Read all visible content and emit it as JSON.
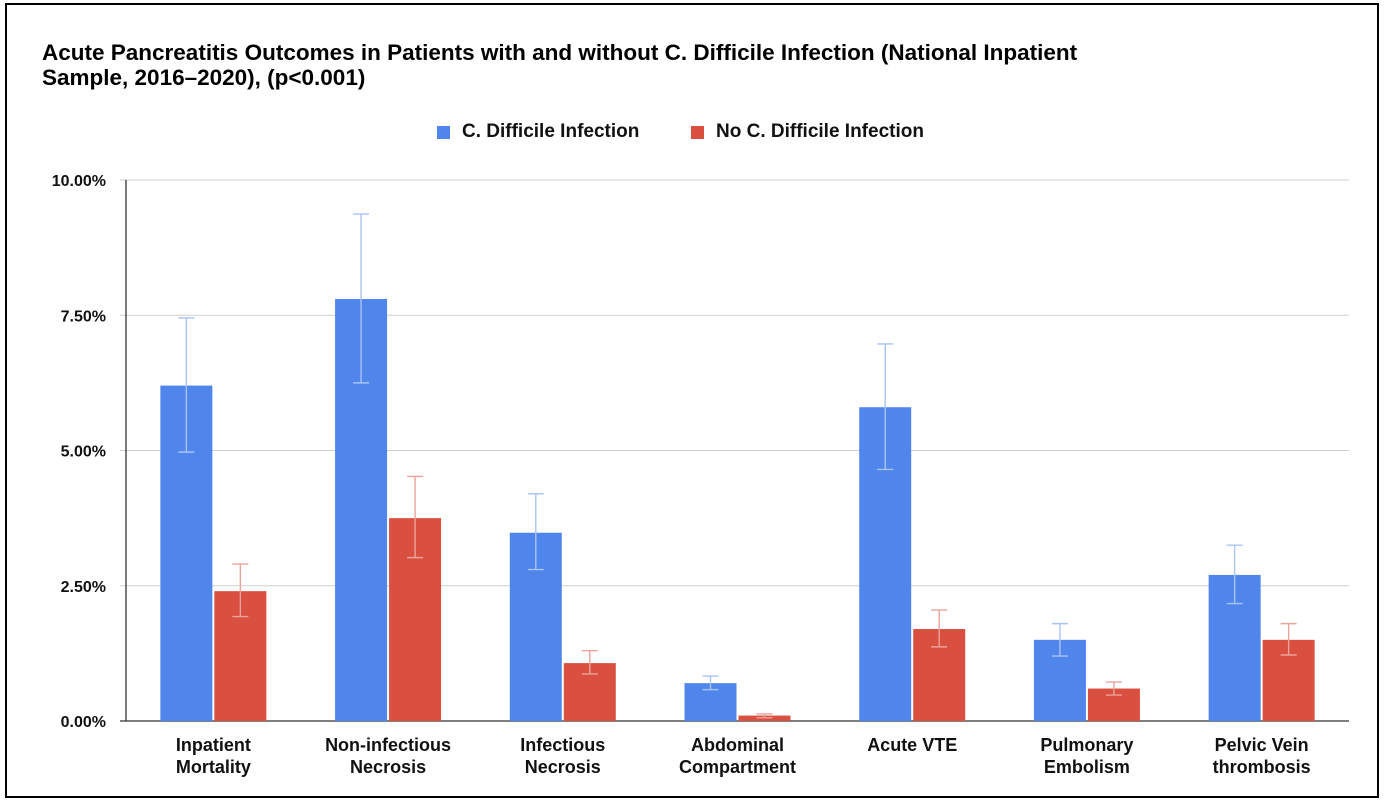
{
  "chart_data": {
    "type": "bar",
    "title": "Acute Pancreatitis Outcomes in Patients with and without C. Difficile Infection (National Inpatient Sample, 2016–2020), (p<0.001)",
    "title_lines": [
      "Acute Pancreatitis Outcomes in Patients with and without C. Difficile Infection (National Inpatient",
      "Sample, 2016–2020), (p<0.001)"
    ],
    "categories": [
      [
        "Inpatient",
        "Mortality"
      ],
      [
        "Non-infectious",
        "Necrosis"
      ],
      [
        "Infectious",
        "Necrosis"
      ],
      [
        "Abdominal",
        "Compartment"
      ],
      [
        "Acute VTE"
      ],
      [
        "Pulmonary",
        "Embolism"
      ],
      [
        "Pelvic Vein",
        "thrombosis"
      ]
    ],
    "series": [
      {
        "name": "C. Difficile Infection",
        "color": "#5086ec",
        "error_color": "#a9c3f5",
        "values": [
          6.2,
          7.8,
          3.48,
          0.7,
          5.8,
          1.5,
          2.7
        ],
        "error_low": [
          4.97,
          6.25,
          2.8,
          0.58,
          4.65,
          1.2,
          2.17
        ],
        "error_high": [
          7.45,
          9.37,
          4.2,
          0.83,
          6.97,
          1.8,
          3.25
        ]
      },
      {
        "name": "No C. Difficile Infection",
        "color": "#d95040",
        "error_color": "#eba39b",
        "values": [
          2.4,
          3.75,
          1.07,
          0.1,
          1.7,
          0.6,
          1.5
        ],
        "error_low": [
          1.93,
          3.02,
          0.87,
          0.06,
          1.37,
          0.48,
          1.22
        ],
        "error_high": [
          2.9,
          4.52,
          1.3,
          0.13,
          2.05,
          0.72,
          1.8
        ]
      }
    ],
    "yticks": [
      "0.00%",
      "2.50%",
      "5.00%",
      "7.50%",
      "10.00%"
    ],
    "ytick_values": [
      0,
      2.5,
      5,
      7.5,
      10
    ],
    "ylim": [
      0,
      10
    ],
    "grid": true,
    "legend_position": "top-center"
  }
}
